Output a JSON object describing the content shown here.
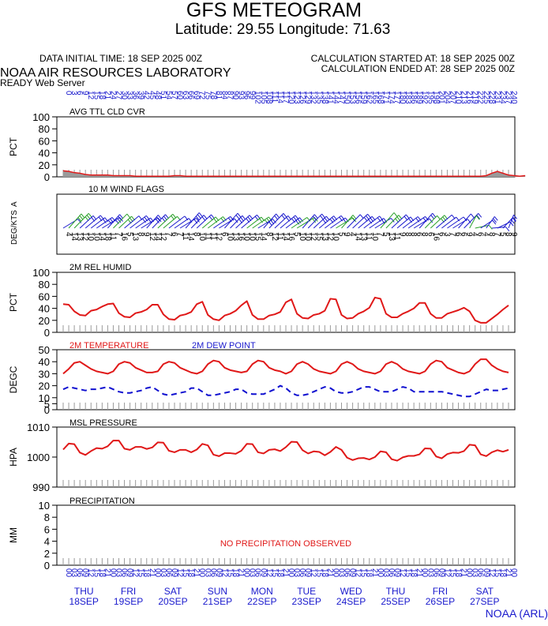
{
  "header": {
    "title": "GFS METEOGRAM",
    "subtitle": "Latitude: 29.55 Longitude:  71.63",
    "init_time": "DATA INITIAL TIME: 18 SEP 2025 00Z",
    "calc_start": "CALCULATION STARTED AT: 18 SEP 2025 00Z",
    "calc_end": "CALCULATION ENDED AT: 28 SEP 2025 00Z",
    "lab": "NOAA AIR RESOURCES LABORATORY",
    "server": "READY Web Server",
    "footer": "NOAA (ARL)"
  },
  "days": [
    {
      "dow": "THU",
      "date": "18SEP"
    },
    {
      "dow": "FRI",
      "date": "19SEP"
    },
    {
      "dow": "SAT",
      "date": "20SEP"
    },
    {
      "dow": "SUN",
      "date": "21SEP"
    },
    {
      "dow": "MON",
      "date": "22SEP"
    },
    {
      "dow": "TUE",
      "date": "23SEP"
    },
    {
      "dow": "WED",
      "date": "24SEP"
    },
    {
      "dow": "THU",
      "date": "25SEP"
    },
    {
      "dow": "FRI",
      "date": "26SEP"
    },
    {
      "dow": "SAT",
      "date": "27SEP"
    }
  ],
  "hour_cycle": [
    "03",
    "06",
    "09",
    "12",
    "15",
    "18",
    "21",
    "00"
  ],
  "forecast_hours_top": [
    "0",
    "3",
    "6",
    "9",
    "12",
    "15",
    "18",
    "21",
    "24",
    "27",
    "30",
    "33",
    "36",
    "39",
    "42",
    "45",
    "48",
    "51",
    "54",
    "57",
    "60",
    "63",
    "66",
    "69",
    "72",
    "75",
    "78",
    "81",
    "84",
    "87",
    "90",
    "93",
    "96",
    "99",
    "102",
    "105",
    "108",
    "111",
    "114",
    "117",
    "120",
    "123",
    "126",
    "129",
    "132",
    "135",
    "138",
    "141",
    "144",
    "147",
    "150",
    "153",
    "156",
    "159",
    "162",
    "165",
    "168",
    "171",
    "174",
    "177",
    "180",
    "183",
    "186",
    "189",
    "192",
    "195",
    "198",
    "201",
    "204",
    "207",
    "210",
    "213",
    "216",
    "219",
    "222",
    "225",
    "228",
    "231",
    "234",
    "237",
    "240"
  ],
  "wind_speeds": [
    "4",
    "14",
    "13",
    "12",
    "10",
    "10",
    "14",
    "18",
    "11",
    "7",
    "16",
    "5",
    "13",
    "8",
    "9",
    "12",
    "14",
    "12",
    "7",
    "6",
    "7",
    "11",
    "14",
    "8",
    "10",
    "11",
    "11",
    "12",
    "6",
    "10",
    "13",
    "16",
    "10",
    "10",
    "15",
    "14",
    "8",
    "12",
    "11",
    "14",
    "16",
    "5",
    "10",
    "10",
    "12",
    "15",
    "13",
    "12",
    "10",
    "5",
    "9",
    "4",
    "14",
    "13",
    "11",
    "10",
    "7",
    "5",
    "13",
    "11",
    "9",
    "8",
    "8",
    "6",
    "8",
    "6",
    "16",
    "6",
    "3",
    "7",
    "6",
    "6",
    "9",
    "4",
    "6",
    "4",
    "8",
    "7",
    "5",
    "8",
    "9"
  ],
  "chart_data": [
    {
      "type": "area",
      "panel_label": "AVG TTL CLD CVR",
      "ylabel": "PCT",
      "ylim": [
        0,
        100
      ],
      "yticks": [
        "100",
        "80",
        "60",
        "40",
        "20",
        "0"
      ],
      "x_step_hours": 3,
      "values": [
        10,
        9,
        7,
        6,
        4,
        3,
        3,
        3,
        3,
        2,
        2,
        2,
        2,
        1,
        1,
        1,
        1,
        1,
        1,
        1,
        2,
        2,
        1,
        1,
        1,
        1,
        1,
        1,
        1,
        1,
        1,
        1,
        1,
        1,
        1,
        1,
        1,
        1,
        1,
        1,
        1,
        1,
        1,
        1,
        1,
        1,
        1,
        1,
        1,
        1,
        1,
        1,
        1,
        1,
        1,
        1,
        1,
        1,
        1,
        1,
        1,
        1,
        1,
        1,
        1,
        1,
        1,
        1,
        1,
        1,
        1,
        1,
        1,
        1,
        1,
        1,
        2,
        6,
        9,
        6,
        3,
        2,
        1,
        2
      ]
    },
    {
      "type": "wind_barbs",
      "panel_label": "10 M  WIND FLAGS",
      "ylabel": "DEG/KTS",
      "side_label": "A"
    },
    {
      "type": "line",
      "panel_label": "2M REL HUMID",
      "ylabel": "PCT",
      "ylim": [
        0,
        100
      ],
      "yticks": [
        "100",
        "80",
        "60",
        "40",
        "20",
        "0"
      ],
      "x_step_hours": 3,
      "series": [
        {
          "values": [
            47,
            46,
            35,
            29,
            28,
            36,
            38,
            43,
            47,
            48,
            32,
            26,
            25,
            32,
            34,
            38,
            46,
            46,
            30,
            22,
            21,
            28,
            30,
            34,
            47,
            51,
            29,
            22,
            20,
            28,
            31,
            36,
            45,
            52,
            29,
            22,
            22,
            28,
            30,
            34,
            50,
            55,
            31,
            24,
            23,
            29,
            31,
            36,
            56,
            55,
            29,
            23,
            24,
            31,
            35,
            41,
            58,
            56,
            31,
            25,
            25,
            31,
            35,
            40,
            49,
            49,
            31,
            24,
            24,
            31,
            34,
            37,
            41,
            35,
            20,
            16,
            16,
            23,
            30,
            38,
            45
          ]
        }
      ]
    },
    {
      "type": "line",
      "panel_label": "2M TEMPERATURE",
      "panel_label_2": "2M   DEW POINT",
      "ylabel": "DEGC",
      "ylim": [
        0,
        50
      ],
      "yticks": [
        "50",
        "40",
        "30",
        "20",
        "10",
        "5",
        "0"
      ],
      "x_step_hours": 3,
      "series": [
        {
          "name": "2M TEMPERATURE",
          "values": [
            30,
            34,
            39,
            40,
            37,
            34,
            32,
            31,
            30,
            32,
            38,
            40,
            39,
            35,
            33,
            31,
            31,
            32,
            38,
            40,
            39,
            35,
            33,
            31,
            30,
            32,
            38,
            41,
            40,
            35,
            33,
            32,
            31,
            32,
            38,
            41,
            40,
            35,
            33,
            32,
            30,
            32,
            38,
            40,
            38,
            34,
            32,
            31,
            30,
            32,
            38,
            40,
            38,
            34,
            32,
            31,
            30,
            32,
            38,
            40,
            38,
            34,
            32,
            31,
            30,
            32,
            38,
            41,
            40,
            35,
            33,
            31,
            30,
            32,
            38,
            42,
            42,
            37,
            34,
            32,
            31
          ]
        },
        {
          "name": "2M   DEW POINT",
          "values": [
            17,
            19,
            18,
            17,
            16,
            17,
            17,
            18,
            19,
            17,
            15,
            14,
            14,
            15,
            16,
            18,
            19,
            16,
            13,
            12,
            13,
            14,
            15,
            18,
            18,
            15,
            12,
            12,
            13,
            14,
            15,
            17,
            17,
            14,
            13,
            13,
            13,
            15,
            17,
            20,
            18,
            14,
            12,
            12,
            13,
            15,
            17,
            19,
            18,
            15,
            14,
            14,
            15,
            17,
            19,
            19,
            17,
            15,
            15,
            15,
            17,
            19,
            18,
            15,
            15,
            15,
            15,
            15,
            15,
            14,
            13,
            12,
            11,
            11,
            13,
            15,
            17,
            16,
            16,
            17,
            18
          ]
        }
      ]
    },
    {
      "type": "line",
      "panel_label": "MSL PRESSURE",
      "ylabel": "HPA",
      "ylim": [
        990,
        1010
      ],
      "yticks": [
        "1010",
        "1000",
        "990"
      ],
      "x_step_hours": 3,
      "series": [
        {
          "values": [
            1002.5,
            1004.5,
            1004.3,
            1001.5,
            1000.7,
            1002.0,
            1003.0,
            1002.8,
            1003.6,
            1005.5,
            1005.5,
            1002.8,
            1002.4,
            1003.4,
            1003.4,
            1002.7,
            1003.2,
            1004.9,
            1004.8,
            1002.1,
            1001.6,
            1002.4,
            1002.4,
            1001.6,
            1002.5,
            1004.4,
            1003.9,
            1000.8,
            1000.3,
            1001.3,
            1001.3,
            1001.1,
            1002.1,
            1004.4,
            1004.3,
            1001.6,
            1001.2,
            1002.4,
            1002.6,
            1002.0,
            1003.3,
            1005.1,
            1005.0,
            1002.3,
            1001.2,
            1001.9,
            1001.7,
            1000.6,
            1001.7,
            1003.4,
            1002.4,
            999.8,
            999.0,
            999.6,
            999.7,
            999.2,
            1000.0,
            1001.9,
            1001.6,
            999.3,
            998.8,
            999.9,
            1000.4,
            1000.4,
            1000.9,
            1002.9,
            1002.8,
            1000.2,
            999.6,
            1001.0,
            1001.5,
            1001.4,
            1002.0,
            1004.1,
            1003.9,
            1000.9,
            1000.3,
            1001.6,
            1002.3,
            1001.8,
            1002.4
          ]
        }
      ]
    },
    {
      "type": "bar",
      "panel_label": "PRECIPITATION",
      "ylabel": "MM",
      "ylim": [
        0,
        10
      ],
      "yticks": [
        "10",
        "8",
        "6",
        "4",
        "2",
        "0"
      ],
      "note": "NO PRECIPITATION OBSERVED",
      "values": []
    }
  ],
  "colors": {
    "axis": "#000000",
    "blue_text": "#1a1acd",
    "red_line": "#e01818",
    "dew_line": "#1010d0",
    "grid_tick": "#9a9a9a",
    "cloud_fill": "#9a9a9a",
    "barb_blue": "#1a1acd",
    "barb_green": "#2aa02a"
  }
}
